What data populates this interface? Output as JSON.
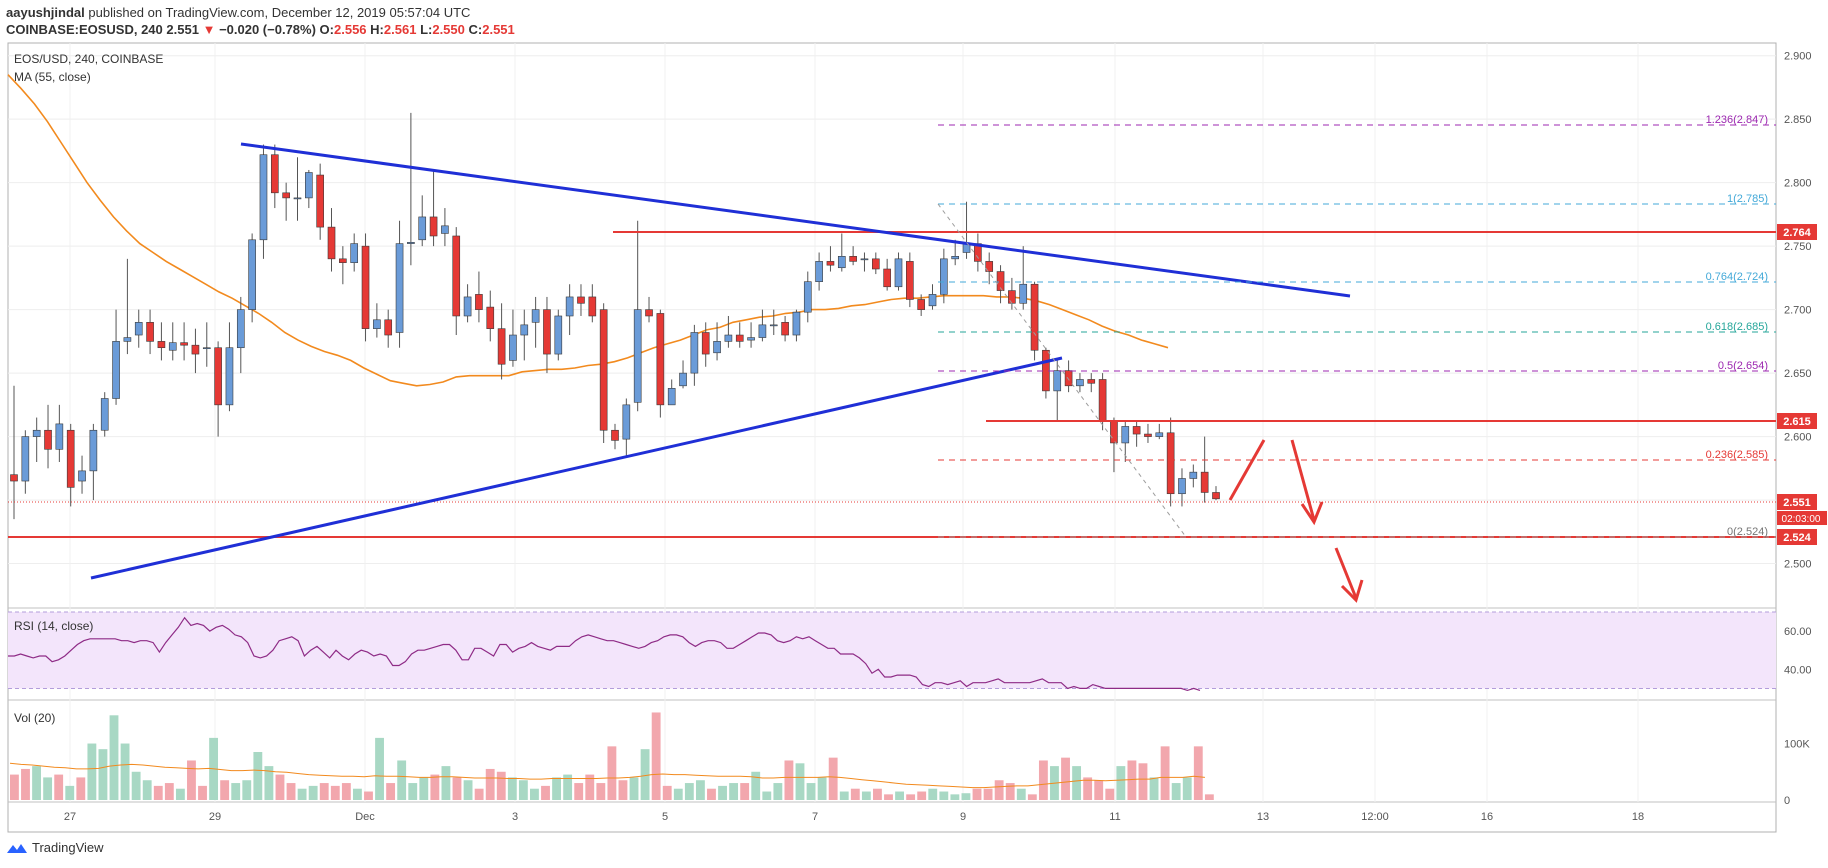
{
  "header": {
    "publisher": "aayushjindal",
    "published_text": "published on TradingView.com, December 12, 2019 05:57:04 UTC",
    "symbol": "COINBASE:EOSUSD, 240",
    "last": "2.551",
    "change_arrow": "▼",
    "change": "−0.020 (−0.78%)",
    "o_label": "O:",
    "o_val": "2.556",
    "h_label": "H:",
    "h_val": "2.561",
    "l_label": "L:",
    "l_val": "2.550",
    "c_label": "C:",
    "c_val": "2.551"
  },
  "chart_labels": {
    "title": "EOS/USD, 240, COINBASE",
    "ma_label": "MA (55, close)",
    "rsi_label": "RSI (14, close)",
    "vol_label": "Vol (20)",
    "countdown": "02:03:00"
  },
  "footer": {
    "brand": "TradingView",
    "logo_icon": "tradingview-logo-icon"
  },
  "colors": {
    "up": "#6a9bd8",
    "down": "#e53935",
    "trend": "#1f2fd6",
    "ma": "#f28a1e",
    "rsi": "#8e2b86",
    "rsi_band": "#f3e5fb",
    "fib_purple": "#9c27b0",
    "fib_blue": "#43a9d8",
    "fib_teal": "#26a69a",
    "fib_red": "#e53935"
  },
  "chart_data": [
    {
      "type": "candlestick",
      "title": "EOS/USD, 240, COINBASE",
      "ylim": [
        2.465,
        2.91
      ],
      "y_ticks": [
        "2.900",
        "2.850",
        "2.800",
        "2.750",
        "2.700",
        "2.650",
        "2.600",
        "2.550",
        "2.500"
      ],
      "x_ticks": [
        "27",
        "29",
        "Dec",
        "3",
        "5",
        "7",
        "9",
        "11",
        "13",
        "12:00",
        "16",
        "18"
      ],
      "candles": [
        [
          2.57,
          2.565,
          2.64,
          2.535
        ],
        [
          2.565,
          2.6,
          2.605,
          2.555
        ],
        [
          2.6,
          2.605,
          2.615,
          2.58
        ],
        [
          2.605,
          2.59,
          2.625,
          2.575
        ],
        [
          2.59,
          2.61,
          2.625,
          2.58
        ],
        [
          2.605,
          2.56,
          2.61,
          2.545
        ],
        [
          2.565,
          2.573,
          2.585,
          2.555
        ],
        [
          2.573,
          2.605,
          2.61,
          2.55
        ],
        [
          2.605,
          2.63,
          2.635,
          2.6
        ],
        [
          2.63,
          2.675,
          2.7,
          2.625
        ],
        [
          2.675,
          2.678,
          2.74,
          2.665
        ],
        [
          2.68,
          2.69,
          2.7,
          2.67
        ],
        [
          2.69,
          2.675,
          2.7,
          2.665
        ],
        [
          2.675,
          2.67,
          2.69,
          2.66
        ],
        [
          2.668,
          2.674,
          2.69,
          2.66
        ],
        [
          2.674,
          2.672,
          2.69,
          2.66
        ],
        [
          2.672,
          2.665,
          2.685,
          2.65
        ],
        [
          2.67,
          2.67,
          2.69,
          2.655
        ],
        [
          2.67,
          2.625,
          2.675,
          2.6
        ],
        [
          2.625,
          2.67,
          2.69,
          2.62
        ],
        [
          2.67,
          2.7,
          2.71,
          2.65
        ],
        [
          2.7,
          2.755,
          2.76,
          2.69
        ],
        [
          2.755,
          2.822,
          2.83,
          2.74
        ],
        [
          2.822,
          2.792,
          2.83,
          2.78
        ],
        [
          2.792,
          2.788,
          2.8,
          2.77
        ],
        [
          2.788,
          2.788,
          2.82,
          2.77
        ],
        [
          2.788,
          2.808,
          2.81,
          2.78
        ],
        [
          2.806,
          2.765,
          2.815,
          2.755
        ],
        [
          2.765,
          2.74,
          2.78,
          2.73
        ],
        [
          2.74,
          2.737,
          2.75,
          2.72
        ],
        [
          2.737,
          2.752,
          2.76,
          2.73
        ],
        [
          2.75,
          2.685,
          2.76,
          2.675
        ],
        [
          2.685,
          2.692,
          2.705,
          2.678
        ],
        [
          2.692,
          2.68,
          2.7,
          2.67
        ],
        [
          2.682,
          2.752,
          2.77,
          2.67
        ],
        [
          2.752,
          2.753,
          2.855,
          2.735
        ],
        [
          2.755,
          2.773,
          2.79,
          2.75
        ],
        [
          2.773,
          2.758,
          2.81,
          2.75
        ],
        [
          2.76,
          2.766,
          2.78,
          2.75
        ],
        [
          2.758,
          2.695,
          2.765,
          2.68
        ],
        [
          2.695,
          2.71,
          2.72,
          2.69
        ],
        [
          2.712,
          2.7,
          2.73,
          2.69
        ],
        [
          2.702,
          2.685,
          2.715,
          2.675
        ],
        [
          2.685,
          2.657,
          2.705,
          2.645
        ],
        [
          2.66,
          2.68,
          2.7,
          2.655
        ],
        [
          2.68,
          2.688,
          2.7,
          2.66
        ],
        [
          2.69,
          2.7,
          2.71,
          2.67
        ],
        [
          2.7,
          2.665,
          2.71,
          2.65
        ],
        [
          2.665,
          2.695,
          2.7,
          2.66
        ],
        [
          2.695,
          2.71,
          2.72,
          2.68
        ],
        [
          2.71,
          2.705,
          2.72,
          2.695
        ],
        [
          2.71,
          2.695,
          2.72,
          2.69
        ],
        [
          2.7,
          2.605,
          2.705,
          2.595
        ],
        [
          2.605,
          2.597,
          2.61,
          2.59
        ],
        [
          2.598,
          2.625,
          2.63,
          2.585
        ],
        [
          2.627,
          2.7,
          2.77,
          2.62
        ],
        [
          2.7,
          2.695,
          2.71,
          2.69
        ],
        [
          2.697,
          2.625,
          2.7,
          2.615
        ],
        [
          2.625,
          2.638,
          2.645,
          2.63
        ],
        [
          2.64,
          2.65,
          2.66,
          2.638
        ],
        [
          2.65,
          2.682,
          2.688,
          2.64
        ],
        [
          2.682,
          2.665,
          2.69,
          2.655
        ],
        [
          2.666,
          2.675,
          2.69,
          2.66
        ],
        [
          2.675,
          2.68,
          2.695,
          2.67
        ],
        [
          2.68,
          2.675,
          2.69,
          2.67
        ],
        [
          2.676,
          2.678,
          2.69,
          2.67
        ],
        [
          2.678,
          2.688,
          2.7,
          2.675
        ],
        [
          2.688,
          2.688,
          2.7,
          2.68
        ],
        [
          2.69,
          2.68,
          2.695,
          2.675
        ],
        [
          2.68,
          2.698,
          2.7,
          2.675
        ],
        [
          2.698,
          2.722,
          2.73,
          2.69
        ],
        [
          2.722,
          2.738,
          2.745,
          2.715
        ],
        [
          2.738,
          2.735,
          2.75,
          2.73
        ],
        [
          2.733,
          2.742,
          2.76,
          2.73
        ],
        [
          2.742,
          2.738,
          2.75,
          2.735
        ],
        [
          2.74,
          2.74,
          2.745,
          2.73
        ],
        [
          2.74,
          2.732,
          2.745,
          2.728
        ],
        [
          2.732,
          2.718,
          2.74,
          2.715
        ],
        [
          2.718,
          2.74,
          2.745,
          2.715
        ],
        [
          2.738,
          2.708,
          2.745,
          2.702
        ],
        [
          2.708,
          2.7,
          2.712,
          2.695
        ],
        [
          2.703,
          2.712,
          2.72,
          2.7
        ],
        [
          2.712,
          2.74,
          2.748,
          2.705
        ],
        [
          2.74,
          2.742,
          2.755,
          2.735
        ],
        [
          2.745,
          2.752,
          2.785,
          2.74
        ],
        [
          2.752,
          2.738,
          2.76,
          2.73
        ],
        [
          2.738,
          2.73,
          2.745,
          2.72
        ],
        [
          2.73,
          2.715,
          2.735,
          2.705
        ],
        [
          2.715,
          2.705,
          2.725,
          2.7
        ],
        [
          2.705,
          2.72,
          2.75,
          2.7
        ],
        [
          2.72,
          2.668,
          2.722,
          2.66
        ],
        [
          2.668,
          2.636,
          2.67,
          2.63
        ],
        [
          2.636,
          2.652,
          2.662,
          2.612
        ],
        [
          2.652,
          2.64,
          2.66,
          2.635
        ],
        [
          2.64,
          2.645,
          2.65,
          2.635
        ],
        [
          2.645,
          2.642,
          2.65,
          2.635
        ],
        [
          2.645,
          2.612,
          2.65,
          2.605
        ],
        [
          2.612,
          2.595,
          2.615,
          2.572
        ],
        [
          2.595,
          2.608,
          2.612,
          2.58
        ],
        [
          2.608,
          2.602,
          2.612,
          2.592
        ],
        [
          2.602,
          2.6,
          2.61,
          2.595
        ],
        [
          2.6,
          2.603,
          2.61,
          2.598
        ],
        [
          2.603,
          2.555,
          2.615,
          2.545
        ],
        [
          2.555,
          2.567,
          2.575,
          2.545
        ],
        [
          2.567,
          2.572,
          2.578,
          2.56
        ],
        [
          2.572,
          2.556,
          2.6,
          2.548
        ],
        [
          2.556,
          2.551,
          2.561,
          2.55
        ]
      ],
      "ma": [
        2.885,
        2.874,
        2.862,
        2.848,
        2.832,
        2.816,
        2.8,
        2.786,
        2.773,
        2.762,
        2.752,
        2.745,
        2.738,
        2.732,
        2.726,
        2.72,
        2.714,
        2.709,
        2.703,
        2.697,
        2.69,
        2.682,
        2.676,
        2.671,
        2.667,
        2.664,
        2.66,
        2.654,
        2.649,
        2.644,
        2.642,
        2.64,
        2.641,
        2.643,
        2.647,
        2.648,
        2.648,
        2.648,
        2.648,
        2.651,
        2.652,
        2.653,
        2.653,
        2.654,
        2.656,
        2.657,
        2.659,
        2.662,
        2.666,
        2.67,
        2.673,
        2.676,
        2.68,
        2.684,
        2.686,
        2.69,
        2.692,
        2.694,
        2.695,
        2.697,
        2.698,
        2.7,
        2.7,
        2.701,
        2.703,
        2.704,
        2.706,
        2.708,
        2.709,
        2.709,
        2.71,
        2.711,
        2.711,
        2.711,
        2.711,
        2.71,
        2.71,
        2.709,
        2.707,
        2.704,
        2.7,
        2.696,
        2.692,
        2.687,
        2.683,
        2.68,
        2.676,
        2.673,
        2.67
      ],
      "rsi": {
        "label": "RSI (14, close)",
        "ylim": [
          25,
          70
        ],
        "ticks": [
          "60.00",
          "40.00"
        ],
        "band": [
          30,
          70
        ],
        "values": [
          47,
          47,
          48,
          47,
          46,
          47,
          47,
          44,
          45,
          47,
          50,
          53,
          55,
          56,
          56,
          56,
          56,
          56,
          55,
          55,
          54,
          55,
          55,
          54,
          49,
          54,
          58,
          62,
          67,
          63,
          64,
          63,
          60,
          62,
          63,
          61,
          58,
          57,
          54,
          47,
          46,
          47,
          50,
          55,
          56,
          57,
          55,
          47,
          50,
          52,
          49,
          46,
          50,
          47,
          45,
          48,
          50,
          49,
          47,
          48,
          47,
          42,
          42,
          44,
          48,
          50,
          50,
          51,
          52,
          53,
          53,
          50,
          45,
          45,
          51,
          51,
          49,
          47,
          53,
          53,
          49,
          51,
          52,
          54,
          52,
          51,
          50,
          52,
          52,
          52,
          55,
          57,
          58,
          57,
          56,
          55,
          55,
          54,
          53,
          52,
          51,
          52,
          54,
          55,
          57,
          58,
          58,
          57,
          54,
          52,
          54,
          55,
          55,
          54,
          51,
          51,
          53,
          55,
          57,
          59,
          59,
          58,
          55,
          54,
          55,
          57,
          56,
          57,
          55,
          53,
          51,
          51,
          48,
          48,
          48,
          46,
          43,
          38,
          40,
          36,
          36,
          37,
          37,
          37,
          36,
          32,
          31,
          33,
          33,
          32,
          33,
          34,
          31,
          33,
          33,
          33,
          34,
          35,
          33,
          33,
          33,
          33,
          33,
          34,
          35,
          33,
          33,
          33,
          30,
          31,
          30,
          30,
          32,
          31,
          30,
          30,
          30,
          30,
          30,
          30,
          30,
          30,
          30,
          30,
          30,
          30,
          30,
          29,
          30,
          29
        ]
      },
      "volume": {
        "label": "Vol (20)",
        "ylim": [
          0,
          170000
        ],
        "ticks": [
          "100K",
          "0"
        ],
        "values": [
          45000,
          55000,
          60000,
          40000,
          45000,
          25000,
          40000,
          100000,
          90000,
          150000,
          100000,
          50000,
          35000,
          25000,
          30000,
          20000,
          70000,
          25000,
          110000,
          35000,
          30000,
          35000,
          85000,
          60000,
          45000,
          30000,
          20000,
          25000,
          30000,
          25000,
          30000,
          20000,
          15000,
          110000,
          30000,
          70000,
          30000,
          40000,
          45000,
          60000,
          40000,
          35000,
          20000,
          55000,
          50000,
          40000,
          35000,
          20000,
          25000,
          40000,
          45000,
          30000,
          45000,
          30000,
          95000,
          35000,
          40000,
          90000,
          155000,
          25000,
          20000,
          30000,
          35000,
          20000,
          25000,
          30000,
          30000,
          50000,
          15000,
          30000,
          70000,
          65000,
          30000,
          40000,
          75000,
          15000,
          20000,
          15000,
          20000,
          10000,
          15000,
          10000,
          15000,
          20000,
          15000,
          10000,
          12000,
          20000,
          20000,
          35000,
          30000,
          20000,
          10000,
          70000,
          60000,
          75000,
          60000,
          40000,
          35000,
          20000,
          60000,
          70000,
          65000,
          40000,
          95000,
          30000,
          40000,
          95000,
          10000
        ],
        "ma": [
          65000,
          63000,
          62000,
          60000,
          58000,
          57000,
          55000,
          55000,
          56000,
          60000,
          62000,
          63000,
          62000,
          60000,
          58000,
          57000,
          56000,
          55000,
          56000,
          54000,
          52000,
          52000,
          53000,
          52000,
          50000,
          49000,
          47000,
          45000,
          44000,
          43000,
          42000,
          42000,
          41000,
          43000,
          42000,
          42000,
          41000,
          40000,
          40000,
          41000,
          41000,
          40000,
          39000,
          39000,
          39000,
          38000,
          38000,
          37000,
          37000,
          38000,
          38000,
          38000,
          38000,
          38000,
          39000,
          39000,
          40000,
          42000,
          45000,
          46000,
          45000,
          45000,
          44000,
          43000,
          42000,
          42000,
          42000,
          41000,
          39000,
          39000,
          40000,
          40000,
          40000,
          40000,
          41000,
          40000,
          38000,
          36000,
          34000,
          32000,
          30000,
          28000,
          27000,
          26000,
          25000,
          24000,
          23000,
          22000,
          22000,
          23000,
          24000,
          25000,
          25000,
          27000,
          29000,
          31000,
          33000,
          35000,
          35000,
          34000,
          35000,
          36000,
          37000,
          37000,
          40000,
          40000,
          40000,
          42000,
          40000
        ]
      }
    }
  ],
  "price_labels": {
    "p2764": "2.764",
    "p2615": "2.615",
    "p2551": "2.551",
    "p2524": "2.524"
  },
  "fib_labels": {
    "f1236": "1.236(2.847)",
    "f1": "1(2.785)",
    "f0764": "0.764(2.724)",
    "f0618": "0.618(2.685)",
    "f05": "0.5(2.654)",
    "f0236": "0.236(2.585)",
    "f0": "0(2.524)"
  }
}
